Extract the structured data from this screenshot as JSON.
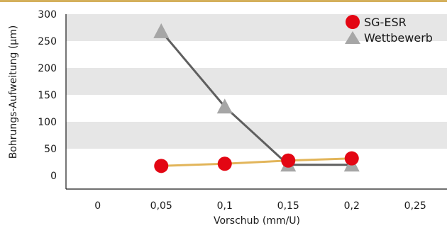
{
  "chart_data": {
    "type": "line",
    "xlabel": "Vorschub (mm/U)",
    "ylabel": "Bohrungs-Aufweitung (μm)",
    "xlim": [
      -0.025,
      0.275
    ],
    "ylim": [
      0,
      300
    ],
    "x_ticks": [
      0,
      0.05,
      0.1,
      0.15,
      0.2,
      0.25
    ],
    "x_tick_labels": [
      "0",
      "0,05",
      "0,1",
      "0,15",
      "0,2",
      "0,25"
    ],
    "y_ticks": [
      0,
      50,
      100,
      150,
      200,
      250,
      300
    ],
    "y_tick_labels": [
      "0",
      "50",
      "100",
      "150",
      "200",
      "250",
      "300"
    ],
    "grid": "alternating horizontal bands",
    "legend_position": "top-right",
    "series": [
      {
        "name": "SG-ESR",
        "marker": "circle",
        "marker_color": "#e30613",
        "line_color": "#e2b55a",
        "x": [
          0.05,
          0.1,
          0.15,
          0.2
        ],
        "y": [
          18,
          22,
          28,
          32
        ]
      },
      {
        "name": "Wettbewerb",
        "marker": "triangle",
        "marker_color": "#a6a6a6",
        "line_color": "#5f5f5f",
        "x": [
          0.05,
          0.1,
          0.15,
          0.2
        ],
        "y": [
          268,
          128,
          20,
          20
        ]
      }
    ]
  },
  "colors": {
    "top_rule": "#d4b05c",
    "band": "#e6e6e6",
    "axis": "#1a1a1a"
  }
}
